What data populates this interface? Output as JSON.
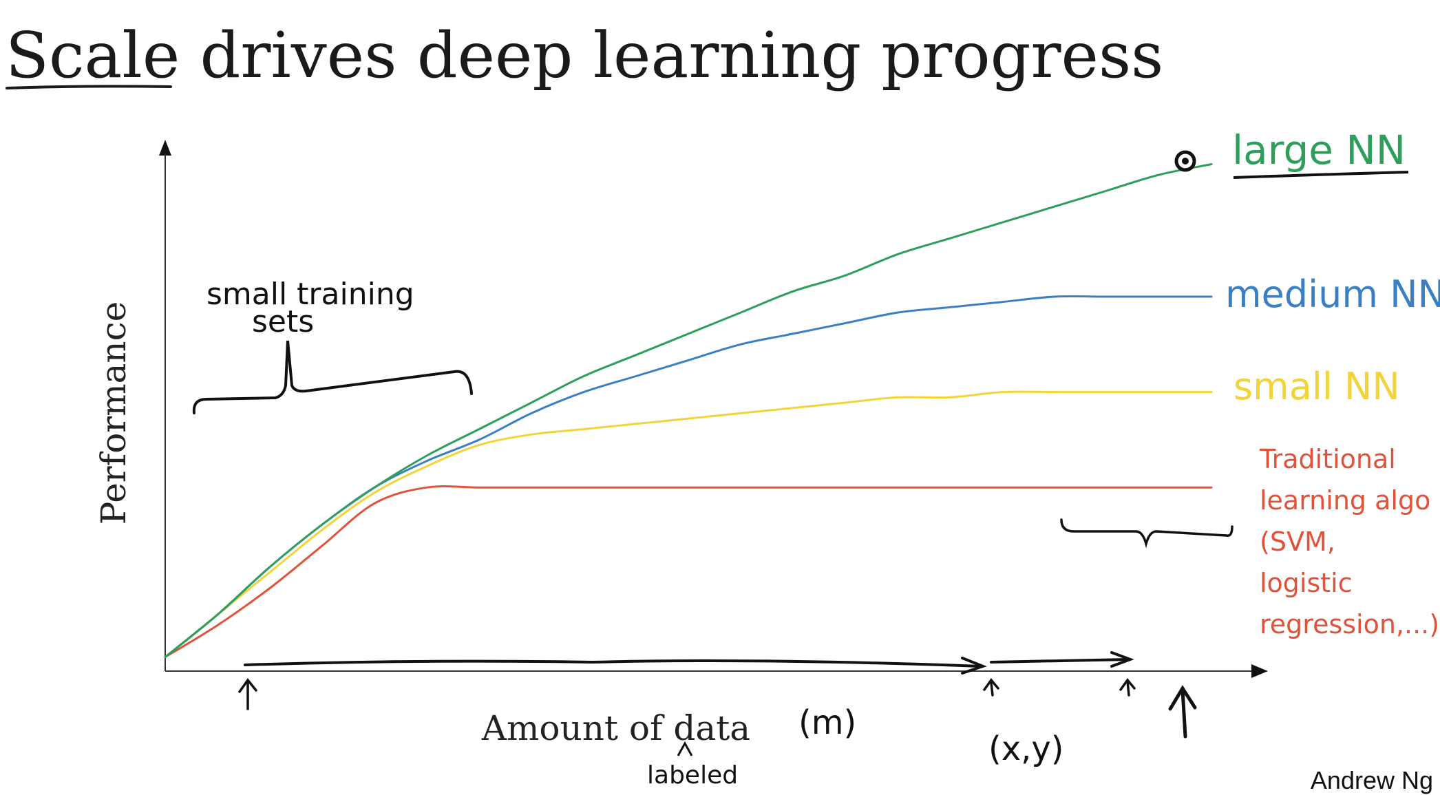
{
  "slide": {
    "title_underlined": "Scale",
    "title_rest": " drives deep learning progress",
    "footer": "Andrew Ng"
  },
  "annotations": {
    "small_training_sets_line1": "small training",
    "small_training_sets_line2": "sets",
    "m": "(m)",
    "xy": "(x,y)",
    "labeled": "labeled"
  },
  "colors": {
    "large_nn": "#2e9e5b",
    "medium_nn": "#3a7fc4",
    "small_nn": "#f2d33a",
    "traditional": "#e0533a",
    "axis": "#333333",
    "ink": "#111111"
  },
  "chart_data": {
    "type": "line",
    "xlabel": "Amount of data",
    "ylabel": "Performance",
    "x": [
      0,
      0.05,
      0.1,
      0.15,
      0.2,
      0.25,
      0.3,
      0.35,
      0.4,
      0.45,
      0.5,
      0.55,
      0.6,
      0.65,
      0.7,
      0.75,
      0.8,
      0.85,
      0.9,
      0.95,
      1.0
    ],
    "xlim": [
      0,
      1
    ],
    "ylim": [
      0,
      1
    ],
    "grid": false,
    "series": [
      {
        "name": "large NN",
        "values": [
          0.02,
          0.1,
          0.19,
          0.27,
          0.34,
          0.4,
          0.45,
          0.5,
          0.55,
          0.59,
          0.63,
          0.67,
          0.71,
          0.74,
          0.78,
          0.81,
          0.84,
          0.87,
          0.9,
          0.93,
          0.95
        ]
      },
      {
        "name": "medium NN",
        "values": [
          0.02,
          0.1,
          0.19,
          0.27,
          0.34,
          0.39,
          0.43,
          0.48,
          0.52,
          0.55,
          0.58,
          0.61,
          0.63,
          0.65,
          0.67,
          0.68,
          0.69,
          0.7,
          0.7,
          0.7,
          0.7
        ]
      },
      {
        "name": "small NN",
        "values": [
          0.02,
          0.1,
          0.18,
          0.26,
          0.33,
          0.38,
          0.42,
          0.44,
          0.45,
          0.46,
          0.47,
          0.48,
          0.49,
          0.5,
          0.51,
          0.51,
          0.52,
          0.52,
          0.52,
          0.52,
          0.52
        ]
      },
      {
        "name": "Traditional learning algo (SVM, logistic regression,...)",
        "values": [
          0.02,
          0.08,
          0.15,
          0.23,
          0.31,
          0.34,
          0.34,
          0.34,
          0.34,
          0.34,
          0.34,
          0.34,
          0.34,
          0.34,
          0.34,
          0.34,
          0.34,
          0.34,
          0.34,
          0.34,
          0.34
        ]
      }
    ],
    "series_labels": {
      "large": "large NN",
      "medium": "medium NN",
      "small": "small NN",
      "traditional": [
        "Traditional",
        "learning algo",
        "(SVM,",
        "logistic",
        "regression,...)"
      ]
    }
  }
}
